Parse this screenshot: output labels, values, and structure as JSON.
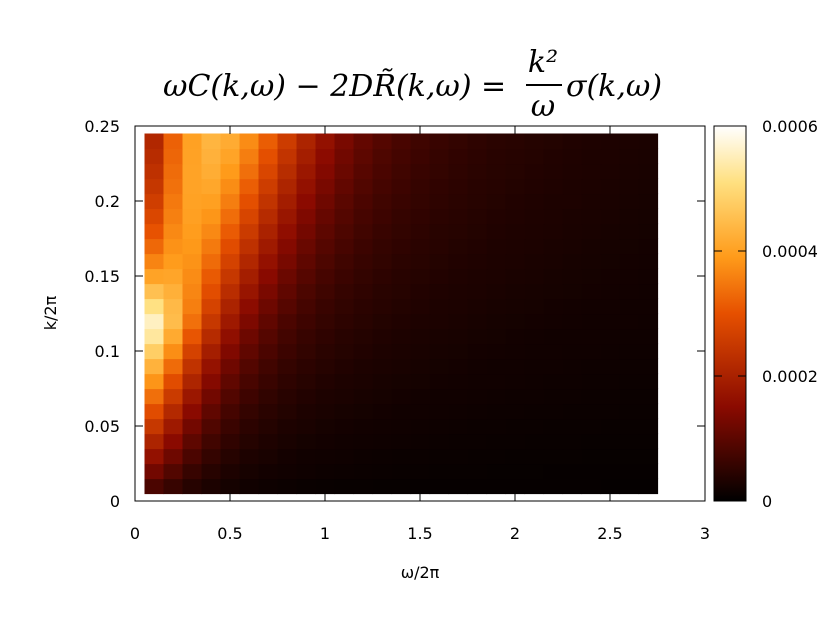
{
  "chart_data": {
    "type": "heatmap",
    "title": "ωC(k,ω) − 2DR̃(k,ω) = (k²/ω) σ(k,ω)",
    "title_parts": {
      "lhs": "ωC(k,ω) − 2DR̃(k,ω) =",
      "numerator": "k²",
      "denominator": "ω",
      "rhs": "σ(k,ω)"
    },
    "xlabel": "ω/2π",
    "ylabel": "k/2π",
    "xlim": [
      0,
      3
    ],
    "ylim": [
      0,
      0.25
    ],
    "x_ticks": [
      {
        "value": 0,
        "label": "0"
      },
      {
        "value": 0.5,
        "label": "0.5"
      },
      {
        "value": 1,
        "label": "1"
      },
      {
        "value": 1.5,
        "label": "1.5"
      },
      {
        "value": 2,
        "label": "2"
      },
      {
        "value": 2.5,
        "label": "2.5"
      },
      {
        "value": 3,
        "label": "3"
      }
    ],
    "y_ticks": [
      {
        "value": 0,
        "label": "0"
      },
      {
        "value": 0.05,
        "label": "0.05"
      },
      {
        "value": 0.1,
        "label": "0.1"
      },
      {
        "value": 0.15,
        "label": "0.15"
      },
      {
        "value": 0.2,
        "label": "0.2"
      },
      {
        "value": 0.25,
        "label": "0.25"
      }
    ],
    "colorbar": {
      "range": [
        0,
        0.0006
      ],
      "ticks": [
        {
          "value": 0,
          "label": "0"
        },
        {
          "value": 0.0002,
          "label": "0.0002"
        },
        {
          "value": 0.0004,
          "label": "0.0004"
        },
        {
          "value": 0.0006,
          "label": "0.0006"
        }
      ],
      "palette": [
        "#000000",
        "#8a0a00",
        "#e65000",
        "#ff9b1a",
        "#ffe080",
        "#ffffff"
      ],
      "palette_stops": [
        0,
        0.25,
        0.5,
        0.65,
        0.85,
        1
      ]
    },
    "grid": {
      "x_start": 0.1,
      "x_step": 0.1,
      "x_count": 27,
      "y_start": 0.01,
      "y_step": 0.01,
      "y_count": 24
    },
    "z": [
      [
        8.2e-05,
        6e-05,
        4.1e-05,
        3e-05,
        2.3e-05,
        1.8e-05,
        1.5e-05,
        1.3e-05,
        1.1e-05,
        1e-05,
        9e-06,
        9e-06,
        8e-06,
        8e-06,
        7e-06,
        7e-06,
        7e-06,
        7e-06,
        6e-06,
        6e-06,
        6e-06,
        6e-06,
        6e-06,
        6e-06,
        5e-06,
        5e-06,
        5e-06
      ],
      [
        0.000124,
        8.9e-05,
        6e-05,
        4.2e-05,
        3.2e-05,
        2.5e-05,
        2.1e-05,
        1.8e-05,
        1.6e-05,
        1.4e-05,
        1.3e-05,
        1.2e-05,
        1.1e-05,
        1e-05,
        1e-05,
        9e-06,
        9e-06,
        9e-06,
        8e-06,
        8e-06,
        8e-06,
        7e-06,
        7e-06,
        7e-06,
        7e-06,
        7e-06,
        7e-06
      ],
      [
        0.000165,
        0.00012,
        8.1e-05,
        5.6e-05,
        4.1e-05,
        3.2e-05,
        2.7e-05,
        2.2e-05,
        1.9e-05,
        1.7e-05,
        1.6e-05,
        1.4e-05,
        1.3e-05,
        1.2e-05,
        1.2e-05,
        1.1e-05,
        1.1e-05,
        1e-05,
        1e-05,
        9e-06,
        9e-06,
        9e-06,
        9e-06,
        8e-06,
        8e-06,
        8e-06,
        8e-06
      ],
      [
        0.000206,
        0.00015,
        0.000102,
        7.1e-05,
        5.2e-05,
        4e-05,
        3.3e-05,
        2.7e-05,
        2.3e-05,
        2.1e-05,
        1.8e-05,
        1.7e-05,
        1.6e-05,
        1.5e-05,
        1.4e-05,
        1.3e-05,
        1.2e-05,
        1.2e-05,
        1.1e-05,
        1.1e-05,
        1e-05,
        1e-05,
        1e-05,
        9e-06,
        9e-06,
        9e-06,
        9e-06
      ],
      [
        0.000248,
        0.000183,
        0.000125,
        8.7e-05,
        6.3e-05,
        4.8e-05,
        3.9e-05,
        3.2e-05,
        2.8e-05,
        2.4e-05,
        2.2e-05,
        2e-05,
        1.8e-05,
        1.7e-05,
        1.6e-05,
        1.5e-05,
        1.4e-05,
        1.3e-05,
        1.3e-05,
        1.2e-05,
        1.2e-05,
        1.1e-05,
        1.1e-05,
        1.1e-05,
        1e-05,
        1e-05,
        1e-05
      ],
      [
        0.000292,
        0.000217,
        0.00015,
        0.000104,
        7.5e-05,
        5.7e-05,
        4.6e-05,
        3.8e-05,
        3.2e-05,
        2.8e-05,
        2.5e-05,
        2.3e-05,
        2.1e-05,
        1.9e-05,
        1.8e-05,
        1.7e-05,
        1.6e-05,
        1.5e-05,
        1.4e-05,
        1.4e-05,
        1.3e-05,
        1.3e-05,
        1.2e-05,
        1.2e-05,
        1.2e-05,
        1.1e-05,
        1.1e-05
      ],
      [
        0.000337,
        0.000254,
        0.000178,
        0.000124,
        8.9e-05,
        6.7e-05,
        5.3e-05,
        4.4e-05,
        3.7e-05,
        3.2e-05,
        2.9e-05,
        2.6e-05,
        2.4e-05,
        2.2e-05,
        2e-05,
        1.9e-05,
        1.8e-05,
        1.7e-05,
        1.6e-05,
        1.5e-05,
        1.5e-05,
        1.4e-05,
        1.4e-05,
        1.3e-05,
        1.3e-05,
        1.2e-05,
        1.2e-05
      ],
      [
        0.000383,
        0.000292,
        0.000207,
        0.000145,
        0.000104,
        7.8e-05,
        6.2e-05,
        5e-05,
        4.2e-05,
        3.6e-05,
        3.2e-05,
        2.9e-05,
        2.6e-05,
        2.4e-05,
        2.3e-05,
        2.1e-05,
        2e-05,
        1.9e-05,
        1.8e-05,
        1.7e-05,
        1.6e-05,
        1.5e-05,
        1.5e-05,
        1.4e-05,
        1.4e-05,
        1.3e-05,
        1.3e-05
      ],
      [
        0.00043,
        0.000332,
        0.000238,
        0.000168,
        0.000121,
        9e-05,
        7.1e-05,
        5.7e-05,
        4.8e-05,
        4.1e-05,
        3.6e-05,
        3.2e-05,
        2.9e-05,
        2.7e-05,
        2.5e-05,
        2.3e-05,
        2.2e-05,
        2e-05,
        1.9e-05,
        1.8e-05,
        1.7e-05,
        1.7e-05,
        1.6e-05,
        1.5e-05,
        1.5e-05,
        1.4e-05,
        1.4e-05
      ],
      [
        0.000478,
        0.000374,
        0.000271,
        0.000193,
        0.000139,
        0.000104,
        8.1e-05,
        6.5e-05,
        5.4e-05,
        4.6e-05,
        4e-05,
        3.6e-05,
        3.2e-05,
        2.9e-05,
        2.7e-05,
        2.5e-05,
        2.4e-05,
        2.2e-05,
        2.1e-05,
        2e-05,
        1.9e-05,
        1.8e-05,
        1.7e-05,
        1.7e-05,
        1.6e-05,
        1.5e-05,
        1.5e-05
      ],
      [
        0.000531,
        0.000416,
        0.000306,
        0.000221,
        0.00016,
        0.000119,
        9.2e-05,
        7.3e-05,
        6e-05,
        5.1e-05,
        4.4e-05,
        3.9e-05,
        3.5e-05,
        3.2e-05,
        2.9e-05,
        2.7e-05,
        2.6e-05,
        2.4e-05,
        2.3e-05,
        2.1e-05,
        2e-05,
        1.9e-05,
        1.9e-05,
        1.8e-05,
        1.7e-05,
        1.6e-05,
        1.6e-05
      ],
      [
        0.000556,
        0.000448,
        0.000338,
        0.000248,
        0.000182,
        0.000136,
        0.000104,
        8.2e-05,
        6.7e-05,
        5.6e-05,
        4.9e-05,
        4.3e-05,
        3.8e-05,
        3.5e-05,
        3.2e-05,
        3e-05,
        2.8e-05,
        2.6e-05,
        2.4e-05,
        2.3e-05,
        2.2e-05,
        2.1e-05,
        2e-05,
        1.9e-05,
        1.8e-05,
        1.8e-05,
        1.7e-05
      ],
      [
        0.000512,
        0.000443,
        0.000356,
        0.000272,
        0.000204,
        0.000154,
        0.000118,
        9.3e-05,
        7.5e-05,
        6.2e-05,
        5.3e-05,
        4.7e-05,
        4.2e-05,
        3.8e-05,
        3.5e-05,
        3.2e-05,
        3e-05,
        2.8e-05,
        2.6e-05,
        2.5e-05,
        2.4e-05,
        2.2e-05,
        2.1e-05,
        2e-05,
        2e-05,
        1.9e-05,
        1.8e-05
      ],
      [
        0.000455,
        0.000426,
        0.000365,
        0.000293,
        0.000226,
        0.000173,
        0.000133,
        0.000104,
        8.3e-05,
        6.9e-05,
        5.8e-05,
        5.1e-05,
        4.5e-05,
        4.1e-05,
        3.7e-05,
        3.4e-05,
        3.2e-05,
        3e-05,
        2.8e-05,
        2.6e-05,
        2.5e-05,
        2.4e-05,
        2.3e-05,
        2.2e-05,
        2.1e-05,
        2e-05,
        1.9e-05
      ],
      [
        0.000404,
        0.000408,
        0.000372,
        0.000312,
        0.000248,
        0.000193,
        0.000149,
        0.000116,
        9.3e-05,
        7.6e-05,
        6.4e-05,
        5.5e-05,
        4.9e-05,
        4.4e-05,
        4e-05,
        3.7e-05,
        3.4e-05,
        3.2e-05,
        3e-05,
        2.8e-05,
        2.7e-05,
        2.5e-05,
        2.4e-05,
        2.3e-05,
        2.2e-05,
        2.1e-05,
        2e-05
      ],
      [
        0.000363,
        0.000392,
        0.00038,
        0.000332,
        0.00027,
        0.000213,
        0.000166,
        0.00013,
        0.000103,
        8.4e-05,
        7e-05,
        6e-05,
        5.3e-05,
        4.7e-05,
        4.3e-05,
        3.9e-05,
        3.6e-05,
        3.4e-05,
        3.1e-05,
        3e-05,
        2.8e-05,
        2.7e-05,
        2.5e-05,
        2.4e-05,
        2.3e-05,
        2.2e-05,
        2.1e-05
      ],
      [
        0.000329,
        0.000379,
        0.000387,
        0.00035,
        0.000292,
        0.000234,
        0.000184,
        0.000144,
        0.000114,
        9.2e-05,
        7.7e-05,
        6.5e-05,
        5.7e-05,
        5.1e-05,
        4.6e-05,
        4.2e-05,
        3.8e-05,
        3.6e-05,
        3.3e-05,
        3.1e-05,
        3e-05,
        2.8e-05,
        2.7e-05,
        2.5e-05,
        2.4e-05,
        2.3e-05,
        2.2e-05
      ],
      [
        0.000302,
        0.000368,
        0.000393,
        0.000368,
        0.000313,
        0.000255,
        0.000202,
        0.000159,
        0.000126,
        0.000101,
        8.4e-05,
        7.1e-05,
        6.1e-05,
        5.4e-05,
        4.9e-05,
        4.4e-05,
        4.1e-05,
        3.8e-05,
        3.5e-05,
        3.3e-05,
        3.1e-05,
        3e-05,
        2.8e-05,
        2.7e-05,
        2.5e-05,
        2.4e-05,
        2.3e-05
      ],
      [
        0.00028,
        0.000358,
        0.000399,
        0.000384,
        0.000335,
        0.000276,
        0.000221,
        0.000175,
        0.000138,
        0.000111,
        9.1e-05,
        7.6e-05,
        6.6e-05,
        5.8e-05,
        5.2e-05,
        4.7e-05,
        4.3e-05,
        4e-05,
        3.7e-05,
        3.5e-05,
        3.3e-05,
        3.1e-05,
        2.9e-05,
        2.8e-05,
        2.7e-05,
        2.5e-05,
        2.4e-05
      ],
      [
        0.000262,
        0.000349,
        0.000402,
        0.000398,
        0.000355,
        0.000297,
        0.00024,
        0.000191,
        0.000151,
        0.000121,
        9.8e-05,
        8.2e-05,
        7e-05,
        6.2e-05,
        5.5e-05,
        5e-05,
        4.6e-05,
        4.2e-05,
        3.9e-05,
        3.6e-05,
        3.4e-05,
        3.2e-05,
        3.1e-05,
        2.9e-05,
        2.8e-05,
        2.6e-05,
        2.5e-05
      ],
      [
        0.000247,
        0.00034,
        0.000404,
        0.00041,
        0.000373,
        0.000317,
        0.000259,
        0.000207,
        0.000164,
        0.000131,
        0.000106,
        8.8e-05,
        7.5e-05,
        6.6e-05,
        5.8e-05,
        5.2e-05,
        4.8e-05,
        4.4e-05,
        4.1e-05,
        3.8e-05,
        3.6e-05,
        3.4e-05,
        3.2e-05,
        3e-05,
        2.9e-05,
        2.7e-05,
        2.6e-05
      ],
      [
        0.000234,
        0.000333,
        0.000404,
        0.000421,
        0.00039,
        0.000337,
        0.000278,
        0.000224,
        0.000178,
        0.000142,
        0.000115,
        9.5e-05,
        8e-05,
        7e-05,
        6.1e-05,
        5.5e-05,
        5e-05,
        4.6e-05,
        4.2e-05,
        4e-05,
        3.7e-05,
        3.5e-05,
        3.3e-05,
        3.1e-05,
        3e-05,
        2.8e-05,
        2.7e-05
      ],
      [
        0.000223,
        0.000326,
        0.000403,
        0.000429,
        0.000405,
        0.000355,
        0.000297,
        0.000241,
        0.000192,
        0.000153,
        0.000123,
        0.000101,
        8.5e-05,
        7.4e-05,
        6.5e-05,
        5.8e-05,
        5.2e-05,
        4.8e-05,
        4.4e-05,
        4.1e-05,
        3.9e-05,
        3.6e-05,
        3.4e-05,
        3.2e-05,
        3.1e-05,
        2.9e-05,
        2.8e-05
      ],
      [
        0.000213,
        0.00032,
        0.000401,
        0.000435,
        0.000418,
        0.000372,
        0.000315,
        0.000258,
        0.000206,
        0.000164,
        0.000132,
        0.000108,
        9.1e-05,
        7.8e-05,
        6.8e-05,
        6.1e-05,
        5.5e-05,
        5e-05,
        4.6e-05,
        4.3e-05,
        4e-05,
        3.8e-05,
        3.5e-05,
        3.3e-05,
        3.2e-05,
        3e-05,
        2.9e-05
      ]
    ]
  }
}
